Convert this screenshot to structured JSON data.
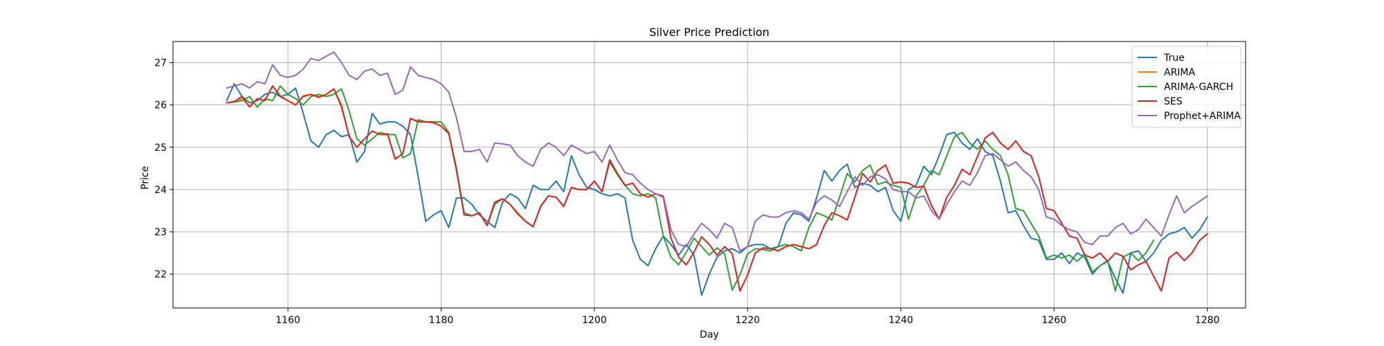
{
  "chart_data": {
    "type": "line",
    "title": "Silver Price Prediction",
    "xlabel": "Day",
    "ylabel": "Price",
    "xlim": [
      1145,
      1285
    ],
    "ylim": [
      21.2,
      27.5
    ],
    "xticks": [
      1160,
      1180,
      1200,
      1220,
      1240,
      1260,
      1280
    ],
    "yticks": [
      22,
      23,
      24,
      25,
      26,
      27
    ],
    "grid": true,
    "legend": "top-right",
    "x": {
      "start": 1152,
      "end": 1279
    },
    "series": [
      {
        "name": "True",
        "color": "#1f77b4",
        "values": [
          26.1,
          26.5,
          26.2,
          26.05,
          26.1,
          26.25,
          26.3,
          26.2,
          26.25,
          26.4,
          25.8,
          25.15,
          25.0,
          25.3,
          25.4,
          25.25,
          25.3,
          24.65,
          24.9,
          25.8,
          25.55,
          25.6,
          25.6,
          25.5,
          25.3,
          24.3,
          23.25,
          23.4,
          23.5,
          23.1,
          23.8,
          23.8,
          23.65,
          23.4,
          23.25,
          23.1,
          23.7,
          23.9,
          23.8,
          23.55,
          24.1,
          24.0,
          24.0,
          24.2,
          23.95,
          24.8,
          24.35,
          24.05,
          24.0,
          23.9,
          23.85,
          23.9,
          23.8,
          22.8,
          22.35,
          22.2,
          22.6,
          22.9,
          22.7,
          22.45,
          22.7,
          22.45,
          21.5,
          22.0,
          22.4,
          22.55,
          22.6,
          22.5,
          22.65,
          22.7,
          22.7,
          22.6,
          22.65,
          23.2,
          23.45,
          23.4,
          23.25,
          23.8,
          24.45,
          24.2,
          24.45,
          24.6,
          24.05,
          24.15,
          24.1,
          23.95,
          24.05,
          23.5,
          23.25,
          24.0,
          24.1,
          24.55,
          24.35,
          24.8,
          25.3,
          25.35,
          25.1,
          24.95,
          25.2,
          24.9,
          24.8,
          24.2,
          23.45,
          23.5,
          23.15,
          22.85,
          22.8,
          22.35,
          22.35,
          22.5,
          22.25,
          22.5,
          22.4,
          22.0,
          22.2,
          22.3,
          21.9,
          21.55,
          22.5,
          22.55,
          22.3,
          22.5,
          22.8,
          22.95,
          23.0,
          23.1,
          22.85,
          23.05,
          23.35
        ]
      },
      {
        "name": "ARIMA",
        "color": "#ff7f0e",
        "values": [
          26.05,
          26.08,
          26.15,
          25.97,
          26.15,
          26.1,
          26.45,
          26.22,
          26.1,
          26.0,
          26.22,
          26.25,
          26.2,
          26.25,
          26.38,
          26.0,
          25.25,
          25.0,
          25.2,
          25.38,
          25.3,
          25.3,
          24.72,
          24.85,
          25.68,
          25.62,
          25.6,
          25.6,
          25.5,
          25.32,
          24.5,
          23.4,
          23.38,
          23.45,
          23.15,
          23.7,
          23.78,
          23.65,
          23.45,
          23.25,
          23.12,
          23.62,
          23.85,
          23.82,
          23.6,
          24.05,
          24.0,
          24.0,
          24.2,
          23.95,
          24.7,
          24.38,
          24.1,
          24.15,
          23.9,
          23.82,
          23.9,
          23.82,
          22.85,
          22.4,
          22.22,
          22.52,
          22.88,
          22.7,
          22.45,
          22.65,
          22.48,
          21.6,
          21.98,
          22.5,
          22.62,
          22.6,
          22.55,
          22.65,
          22.7,
          22.65,
          22.6,
          22.7,
          23.15,
          23.45,
          23.38,
          23.28,
          23.82,
          24.38,
          24.18,
          24.45,
          24.58,
          24.15,
          24.18,
          24.15,
          24.05,
          24.08,
          23.62,
          23.3,
          23.82,
          24.1,
          24.48,
          24.35,
          24.78,
          25.22,
          25.35,
          25.1,
          24.95,
          25.15,
          24.9,
          24.8,
          24.3,
          23.55,
          23.5,
          23.2,
          22.9,
          22.85,
          22.45,
          22.38,
          22.5,
          22.3,
          22.5,
          22.42,
          22.1,
          22.22,
          22.3,
          21.95,
          21.6,
          22.38,
          22.52,
          22.32,
          22.5,
          22.8,
          22.95
        ]
      },
      {
        "name": "ARIMA-GARCH",
        "color": "#2ca02c",
        "values": [
          26.05,
          26.07,
          26.1,
          26.2,
          25.95,
          26.15,
          26.1,
          26.45,
          26.25,
          26.15,
          26.0,
          26.2,
          26.25,
          26.2,
          26.25,
          26.38,
          25.85,
          25.2,
          25.05,
          25.2,
          25.35,
          25.3,
          25.3,
          24.75,
          24.85,
          25.65,
          25.6,
          25.6,
          25.6,
          25.35,
          24.5,
          23.45,
          23.38,
          23.45,
          23.15,
          23.65,
          23.78,
          23.65,
          23.42,
          23.25,
          23.12,
          23.6,
          23.85,
          23.82,
          23.6,
          24.05,
          24.0,
          24.0,
          24.2,
          23.95,
          24.65,
          24.35,
          24.1,
          23.9,
          23.85,
          23.9,
          23.8,
          22.9,
          22.4,
          22.22,
          22.52,
          22.85,
          22.65,
          22.45,
          22.62,
          22.48,
          21.62,
          21.98,
          22.48,
          22.6,
          22.58,
          22.55,
          22.65,
          22.7,
          22.65,
          22.55,
          23.1,
          23.45,
          23.38,
          23.28,
          23.82,
          24.38,
          24.18,
          24.45,
          24.58,
          24.12,
          24.18,
          24.1,
          24.05,
          23.3,
          23.85,
          24.1,
          24.45,
          24.35,
          24.8,
          25.25,
          25.35,
          25.1,
          24.95,
          25.15,
          24.95,
          24.8,
          24.35,
          23.55,
          23.5,
          23.2,
          22.9,
          22.38,
          22.45,
          22.38,
          22.45,
          22.3,
          22.48,
          22.05,
          22.2,
          22.32,
          21.6,
          22.4,
          22.5,
          22.32,
          22.5,
          22.8
        ]
      },
      {
        "name": "SES",
        "color": "#d62728",
        "values": [
          26.05,
          26.08,
          26.2,
          25.95,
          26.15,
          26.1,
          26.45,
          26.2,
          26.1,
          26.0,
          26.2,
          26.25,
          26.18,
          26.25,
          26.38,
          25.95,
          25.25,
          25.0,
          25.2,
          25.38,
          25.3,
          25.32,
          24.72,
          24.85,
          25.68,
          25.6,
          25.6,
          25.58,
          25.5,
          25.32,
          24.45,
          23.4,
          23.38,
          23.45,
          23.15,
          23.7,
          23.78,
          23.65,
          23.42,
          23.25,
          23.12,
          23.6,
          23.85,
          23.82,
          23.6,
          24.05,
          24.0,
          24.0,
          24.2,
          23.95,
          24.7,
          24.38,
          24.1,
          24.15,
          23.9,
          23.82,
          23.9,
          23.82,
          22.85,
          22.4,
          22.22,
          22.52,
          22.88,
          22.7,
          22.45,
          22.65,
          22.48,
          21.6,
          21.98,
          22.5,
          22.62,
          22.6,
          22.55,
          22.65,
          22.7,
          22.65,
          22.6,
          22.7,
          23.15,
          23.45,
          23.38,
          23.28,
          23.82,
          24.38,
          24.18,
          24.45,
          24.58,
          24.15,
          24.18,
          24.15,
          24.05,
          24.08,
          23.62,
          23.3,
          23.82,
          24.1,
          24.48,
          24.35,
          24.78,
          25.22,
          25.35,
          25.1,
          24.95,
          25.15,
          24.9,
          24.8,
          24.3,
          23.55,
          23.5,
          23.2,
          22.9,
          22.85,
          22.45,
          22.38,
          22.5,
          22.3,
          22.5,
          22.42,
          22.1,
          22.22,
          22.3,
          21.95,
          21.6,
          22.38,
          22.52,
          22.32,
          22.5,
          22.8,
          22.95
        ]
      },
      {
        "name": "Prophet+ARIMA",
        "color": "#9467bd",
        "values": [
          26.4,
          26.45,
          26.5,
          26.4,
          26.55,
          26.5,
          26.95,
          26.7,
          26.65,
          26.7,
          26.85,
          27.1,
          27.05,
          27.15,
          27.25,
          27.0,
          26.7,
          26.6,
          26.8,
          26.85,
          26.7,
          26.75,
          26.25,
          26.35,
          26.9,
          26.7,
          26.65,
          26.6,
          26.5,
          26.3,
          25.7,
          24.9,
          24.9,
          24.95,
          24.65,
          25.1,
          25.08,
          25.05,
          24.8,
          24.65,
          24.55,
          24.95,
          25.1,
          25.0,
          24.8,
          25.05,
          24.95,
          24.85,
          24.9,
          24.65,
          25.05,
          24.7,
          24.4,
          24.35,
          24.15,
          24.0,
          23.9,
          23.85,
          23.05,
          22.7,
          22.65,
          22.95,
          23.2,
          23.05,
          22.85,
          23.2,
          23.1,
          22.55,
          22.65,
          23.25,
          23.4,
          23.35,
          23.35,
          23.45,
          23.5,
          23.45,
          23.3,
          23.7,
          23.85,
          23.75,
          23.6,
          23.95,
          24.3,
          24.1,
          24.3,
          24.35,
          24.25,
          24.0,
          23.95,
          23.95,
          23.8,
          23.85,
          23.5,
          23.3,
          23.65,
          23.95,
          24.2,
          24.1,
          24.4,
          24.8,
          24.85,
          24.7,
          24.55,
          24.65,
          24.45,
          24.3,
          24.0,
          23.35,
          23.3,
          23.15,
          23.05,
          23.0,
          22.75,
          22.7,
          22.9,
          22.9,
          23.1,
          23.2,
          22.95,
          23.05,
          23.3,
          23.1,
          22.9,
          23.4,
          23.85,
          23.45,
          23.6,
          23.72,
          23.85
        ]
      }
    ]
  }
}
